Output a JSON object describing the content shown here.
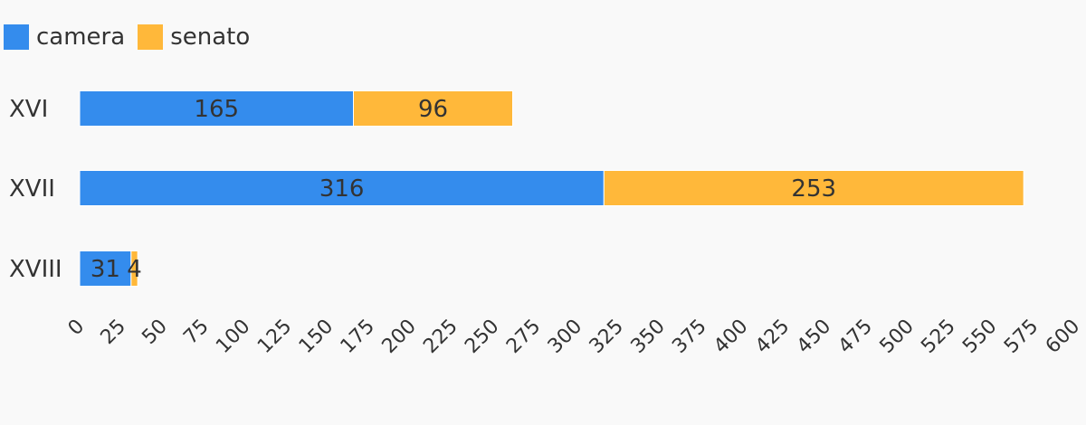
{
  "chart_data": {
    "type": "bar",
    "orientation": "horizontal",
    "stacked": true,
    "categories": [
      "XVI",
      "XVII",
      "XVIII"
    ],
    "series": [
      {
        "name": "camera",
        "color": "#348ced",
        "values": [
          165,
          316,
          31
        ]
      },
      {
        "name": "senato",
        "color": "#ffb83a",
        "values": [
          96,
          253,
          4
        ]
      }
    ],
    "xlim": [
      0,
      600
    ],
    "xticks": [
      "0",
      "25",
      "50",
      "75",
      "100",
      "125",
      "150",
      "175",
      "200",
      "225",
      "250",
      "275",
      "300",
      "325",
      "350",
      "375",
      "400",
      "425",
      "450",
      "475",
      "500",
      "525",
      "550",
      "575",
      "600"
    ],
    "grid": false,
    "legend_position": "top-left"
  }
}
